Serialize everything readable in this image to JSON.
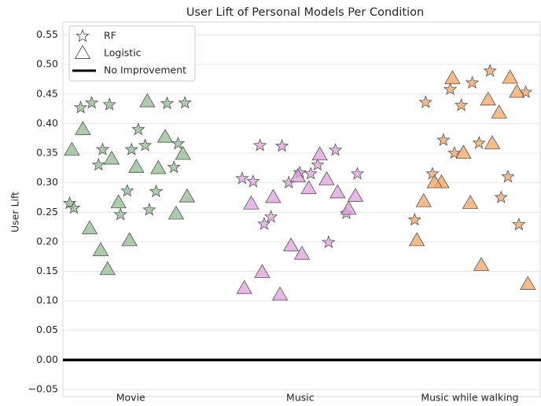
{
  "chart_data": {
    "type": "strip",
    "title": "User Lift of Personal Models Per Condition",
    "y_label": "User Lift",
    "categories": [
      "Movie",
      "Music",
      "Music while walking"
    ],
    "category_colors": [
      "#8fbc8f",
      "#dda0dd",
      "#f4a460"
    ],
    "xlim": [
      -0.4,
      2.42
    ],
    "ylim": [
      -0.062,
      0.572
    ],
    "yticks": [
      {
        "value": -0.05,
        "label": "−0.05"
      },
      {
        "value": 0,
        "label": "0.00"
      },
      {
        "value": 0.05,
        "label": "0.05"
      },
      {
        "value": 0.1,
        "label": "0.10"
      },
      {
        "value": 0.15,
        "label": "0.15"
      },
      {
        "value": 0.2,
        "label": "0.20"
      },
      {
        "value": 0.25,
        "label": "0.25"
      },
      {
        "value": 0.3,
        "label": "0.30"
      },
      {
        "value": 0.35,
        "label": "0.35"
      },
      {
        "value": 0.4,
        "label": "0.40"
      },
      {
        "value": 0.45,
        "label": "0.45"
      },
      {
        "value": 0.5,
        "label": "0.50"
      },
      {
        "value": 0.55,
        "label": "0.55"
      }
    ],
    "grid": true,
    "legend": "upper left",
    "series": [
      {
        "name": "RF",
        "marker": "star",
        "values": [
          [
            0.265,
            0.363,
            0.33,
            0.326,
            0.286,
            0.427,
            0.285,
            0.432,
            0.435,
            0.39,
            0.435,
            0.434,
            0.246,
            0.257,
            0.254,
            0.356,
            0.366,
            0.356
          ],
          [
            0.363,
            0.355,
            0.3,
            0.307,
            0.33,
            0.242,
            0.248,
            0.317,
            0.302,
            0.199,
            0.362,
            0.315,
            0.315,
            0.23
          ],
          [
            0.458,
            0.453,
            0.367,
            0.315,
            0.31,
            0.431,
            0.237,
            0.489,
            0.372,
            0.229,
            0.469,
            0.436,
            0.275,
            0.35
          ]
        ]
      },
      {
        "name": "Logistic",
        "marker": "triangle",
        "values": [
          [
            0.153,
            0.348,
            0.326,
            0.222,
            0.377,
            0.266,
            0.355,
            0.437,
            0.185,
            0.247,
            0.202,
            0.39,
            0.324,
            0.34,
            0.276
          ],
          [
            0.31,
            0.264,
            0.305,
            0.11,
            0.277,
            0.29,
            0.148,
            0.283,
            0.193,
            0.121,
            0.347,
            0.275,
            0.255,
            0.179
          ],
          [
            0.44,
            0.3,
            0.453,
            0.265,
            0.268,
            0.418,
            0.476,
            0.128,
            0.16,
            0.3,
            0.477,
            0.35,
            0.202,
            0.366
          ]
        ]
      }
    ],
    "reference_line": {
      "name": "No Improvement",
      "value": 0,
      "color": "#000000"
    }
  }
}
